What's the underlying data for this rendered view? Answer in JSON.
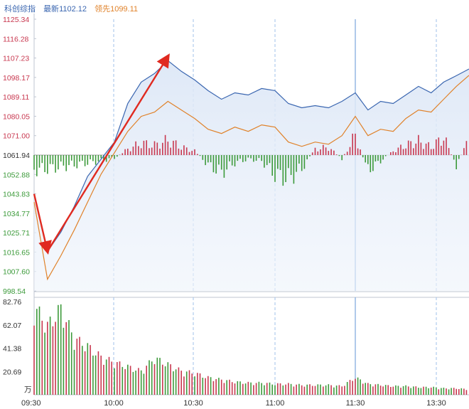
{
  "header": {
    "index_name": "科创综指",
    "latest_label": "最新",
    "latest_value": "1102.12",
    "leading_label": "领先",
    "leading_value": "1099.11",
    "colors": {
      "name": "#3a66b0",
      "latest": "#3a66b0",
      "leading": "#e0822a"
    }
  },
  "chart_data": [
    {
      "type": "line",
      "x_ticks": [
        "09:30",
        "10:00",
        "10:30",
        "11:00",
        "11:30",
        "13:30"
      ],
      "y_ticks": [
        "1125.34",
        "1116.28",
        "1107.23",
        "1098.17",
        "1089.11",
        "1080.05",
        "1071.00",
        "1061.94",
        "1052.88",
        "1043.83",
        "1034.77",
        "1025.71",
        "1016.65",
        "1007.60",
        "998.54"
      ],
      "ylim": [
        998.54,
        1125.34
      ],
      "reference_price": 1061.94,
      "time_points": [
        "09:30",
        "09:35",
        "09:40",
        "09:45",
        "09:50",
        "09:55",
        "10:00",
        "10:05",
        "10:10",
        "10:15",
        "10:20",
        "10:25",
        "10:30",
        "10:35",
        "10:40",
        "10:45",
        "10:50",
        "10:55",
        "11:00",
        "11:05",
        "11:10",
        "11:15",
        "11:20",
        "11:25",
        "11:30",
        "13:00",
        "13:05",
        "13:10",
        "13:15",
        "13:20",
        "13:25",
        "13:30",
        "13:35",
        "13:40"
      ],
      "series": [
        {
          "role": "latest",
          "color": "#3a66b0",
          "values": [
            1043.8,
            1017.0,
            1026.0,
            1038.0,
            1052.0,
            1060.0,
            1068.0,
            1086.0,
            1096.0,
            1100.0,
            1106.0,
            1101.0,
            1097.0,
            1092.0,
            1088.0,
            1091.0,
            1090.0,
            1093.0,
            1092.0,
            1086.0,
            1084.0,
            1085.0,
            1084.0,
            1087.0,
            1091.0,
            1083.0,
            1087.0,
            1086.0,
            1090.0,
            1094.0,
            1091.0,
            1096.0,
            1099.0,
            1102.12
          ]
        },
        {
          "role": "leading",
          "color": "#e0822a",
          "values": [
            1040.0,
            1004.0,
            1015.0,
            1027.0,
            1040.0,
            1053.0,
            1063.0,
            1073.0,
            1080.0,
            1082.0,
            1087.0,
            1083.0,
            1079.0,
            1074.0,
            1072.0,
            1075.0,
            1073.0,
            1076.0,
            1075.0,
            1068.0,
            1066.0,
            1068.0,
            1067.0,
            1071.0,
            1080.0,
            1071.0,
            1074.0,
            1073.0,
            1079.0,
            1083.0,
            1082.0,
            1088.0,
            1094.0,
            1099.11
          ]
        }
      ],
      "diff_bars": {
        "colors": {
          "up": "#c8374f",
          "down": "#3c9a3a"
        },
        "values": [
          -15,
          -14,
          -12,
          -10,
          -8,
          -6,
          -3,
          6,
          12,
          10,
          15,
          8,
          4,
          -10,
          -18,
          -8,
          -4,
          -6,
          -20,
          -24,
          -14,
          6,
          8,
          -4,
          20,
          -16,
          -6,
          4,
          10,
          14,
          8,
          18,
          -10,
          16
        ]
      },
      "annotations": [
        {
          "type": "arrow",
          "color": "#e02a20",
          "from": [
            "09:30",
            1043.8
          ],
          "to": [
            "09:35",
            1017.0
          ]
        },
        {
          "type": "arrow",
          "color": "#e02a20",
          "from": [
            "09:35",
            1017.0
          ],
          "to": [
            "10:20",
            1108.0
          ]
        }
      ]
    },
    {
      "type": "bar",
      "y_ticks": [
        "82.76",
        "62.07",
        "41.38",
        "20.69"
      ],
      "unit": "万",
      "ylim": [
        0,
        82.76
      ],
      "colors": {
        "up": "#c8374f",
        "down": "#3c9a3a"
      },
      "values": [
        82,
        64,
        80,
        52,
        45,
        35,
        30,
        26,
        22,
        34,
        28,
        22,
        20,
        16,
        14,
        12,
        11,
        11,
        10,
        10,
        9,
        9,
        9,
        8,
        16,
        10,
        9,
        8,
        8,
        7,
        7,
        6,
        6,
        5
      ],
      "up": [
        true,
        false,
        true,
        false,
        true,
        false,
        false,
        true,
        true,
        true,
        true,
        false,
        false,
        false,
        false,
        true,
        false,
        true,
        false,
        false,
        false,
        true,
        true,
        false,
        true,
        false,
        false,
        true,
        true,
        true,
        true,
        true,
        false,
        true
      ]
    }
  ]
}
